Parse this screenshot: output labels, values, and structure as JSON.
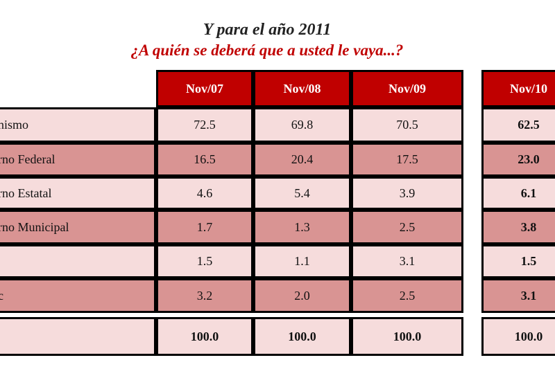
{
  "header": {
    "title": "Y para el año 2011",
    "subtitle": "¿A quién se deberá que a usted le vaya...?"
  },
  "table": {
    "columns": [
      "Nov/07",
      "Nov/08",
      "Nov/09",
      "Nov/10"
    ],
    "rows": [
      {
        "label": "nismo",
        "values": [
          "72.5",
          "69.8",
          "70.5",
          "62.5"
        ]
      },
      {
        "label": "rno Federal",
        "values": [
          "16.5",
          "20.4",
          "17.5",
          "23.0"
        ]
      },
      {
        "label": "rno Estatal",
        "values": [
          "4.6",
          "5.4",
          "3.9",
          "6.1"
        ]
      },
      {
        "label": "rno Municipal",
        "values": [
          "1.7",
          "1.3",
          "2.5",
          "3.8"
        ]
      },
      {
        "label": null,
        "values": [
          "1.5",
          "1.1",
          "3.1",
          "1.5"
        ]
      },
      {
        "label": "c",
        "values": [
          "3.2",
          "2.0",
          "2.5",
          "3.1"
        ]
      }
    ],
    "total": [
      "100.0",
      "100.0",
      "100.0",
      "100.0"
    ]
  }
}
